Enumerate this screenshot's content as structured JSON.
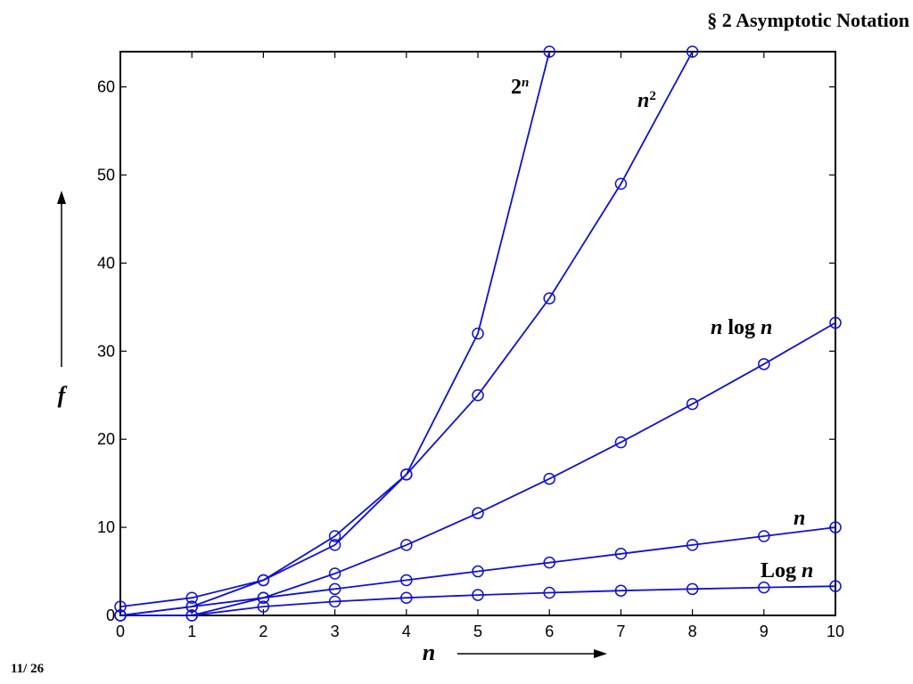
{
  "slide": {
    "header": "§ 2  Asymptotic Notation",
    "page_number": "11/ 26"
  },
  "chart_data": {
    "type": "line",
    "title": "",
    "xlabel": "n",
    "ylabel": "f",
    "xlim": [
      0,
      10
    ],
    "ylim": [
      0,
      64
    ],
    "xticks": [
      0,
      1,
      2,
      3,
      4,
      5,
      6,
      7,
      8,
      9,
      10
    ],
    "yticks": [
      0,
      10,
      20,
      30,
      40,
      50,
      60
    ],
    "grid": false,
    "legend": "none",
    "line_color": "#1010d0",
    "series": [
      {
        "name": "2ⁿ",
        "label_parts": [
          "2",
          "n"
        ],
        "x": [
          0,
          1,
          2,
          3,
          4,
          5,
          6
        ],
        "y": [
          1,
          2,
          4,
          8,
          16,
          32,
          64
        ]
      },
      {
        "name": "n²",
        "label_parts": [
          "n",
          "2"
        ],
        "x": [
          0,
          1,
          2,
          3,
          4,
          5,
          6,
          7,
          8
        ],
        "y": [
          0,
          1,
          4,
          9,
          16,
          25,
          36,
          49,
          64
        ]
      },
      {
        "name": "n log n",
        "label_parts": [
          "n",
          " log ",
          "n"
        ],
        "x": [
          0,
          1,
          2,
          3,
          4,
          5,
          6,
          7,
          8,
          9,
          10
        ],
        "y": [
          0,
          0,
          2,
          4.75,
          8,
          11.61,
          15.51,
          19.65,
          24,
          28.53,
          33.22
        ]
      },
      {
        "name": "n",
        "label_parts": [
          "n"
        ],
        "x": [
          0,
          1,
          2,
          3,
          4,
          5,
          6,
          7,
          8,
          9,
          10
        ],
        "y": [
          0,
          1,
          2,
          3,
          4,
          5,
          6,
          7,
          8,
          9,
          10
        ]
      },
      {
        "name": "Log n",
        "label_parts": [
          "Log ",
          "n"
        ],
        "x": [
          1,
          2,
          3,
          4,
          5,
          6,
          7,
          8,
          9,
          10
        ],
        "y": [
          0,
          1,
          1.58,
          2,
          2.32,
          2.58,
          2.81,
          3,
          3.17,
          3.32
        ]
      }
    ]
  }
}
